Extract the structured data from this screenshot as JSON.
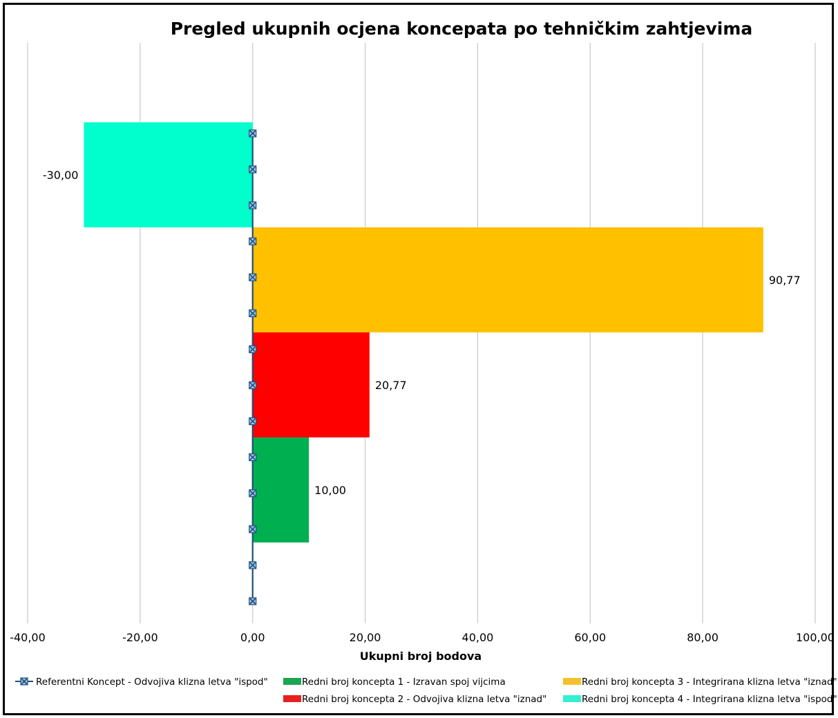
{
  "chart_data": {
    "type": "bar",
    "orientation": "horizontal",
    "title": "Pregled ukupnih ocjena koncepata po tehničkim zahtjevima",
    "xlabel": "Ukupni broj bodova",
    "ylabel": "",
    "xlim": [
      -40,
      100
    ],
    "xticks": [
      -40,
      -20,
      0,
      20,
      40,
      60,
      80,
      100
    ],
    "xtick_labels": [
      "-40,00",
      "-20,00",
      "0,00",
      "20,00",
      "40,00",
      "60,00",
      "80,00",
      "100,00"
    ],
    "grid": "vertical",
    "legend_position": "bottom",
    "series": [
      {
        "name": "Redni broj koncepta 4 - Integrirana klizna letva \"ispod\"",
        "value": -30.0,
        "label": "-30,00",
        "color": "#00FFCC",
        "legend_color": "#33F0D0"
      },
      {
        "name": "Redni broj koncepta 3 - Integrirana klizna letva \"iznad\"",
        "value": 90.77,
        "label": "90,77",
        "color": "#FFC000",
        "legend_color": "#F5C02C"
      },
      {
        "name": "Redni broj koncepta 2 - Odvojiva klizna letva \"iznad\"",
        "value": 20.77,
        "label": "20,77",
        "color": "#FF0000",
        "legend_color": "#E91E1E"
      },
      {
        "name": "Redni broj koncepta 1 - Izravan spoj vijcima",
        "value": 10.0,
        "label": "10,00",
        "color": "#00B050",
        "legend_color": "#1AA550"
      }
    ],
    "reference_series": {
      "name": "Referentni Koncept - Odvojiva klizna letva \"ispod\"",
      "type": "line",
      "x": [
        0,
        0,
        0,
        0,
        0,
        0,
        0,
        0,
        0,
        0,
        0,
        0,
        0,
        0
      ],
      "color": "#1F4E79"
    },
    "legend": [
      {
        "series": "reference",
        "name": "Referentni Koncept - Odvojiva klizna letva \"ispod\""
      },
      {
        "series": 3,
        "name": "Redni broj koncepta 1 - Izravan spoj vijcima"
      },
      {
        "series": 1,
        "name": "Redni broj koncepta 3 - Integrirana klizna letva \"iznad\""
      },
      {
        "series": 2,
        "name": "Redni broj koncepta 2 - Odvojiva klizna letva \"iznad\""
      },
      {
        "series": 0,
        "name": "Redni broj koncepta 4 - Integrirana klizna letva \"ispod\""
      }
    ]
  }
}
